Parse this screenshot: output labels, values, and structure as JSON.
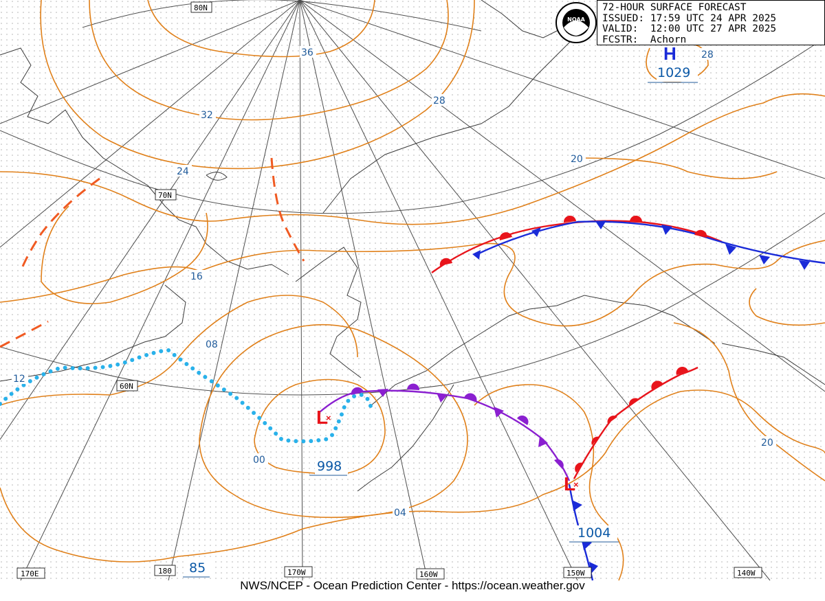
{
  "header": {
    "title": "72-HOUR SURFACE FORECAST",
    "issued": "ISSUED: 17:59 UTC 24 APR 2025",
    "valid": "VALID:  12:00 UTC 27 APR 2025",
    "forecaster": "FCSTR:  Achorn"
  },
  "logo": {
    "text": "NOAA"
  },
  "footer": {
    "credit": "NWS/NCEP - Ocean Prediction Center - https://ocean.weather.gov"
  },
  "latitude_labels": [
    "80N",
    "70N",
    "60N"
  ],
  "longitude_labels": [
    "170E",
    "180",
    "170W",
    "160W",
    "150W",
    "140W"
  ],
  "isobar_labels": [
    "36",
    "32",
    "28",
    "24",
    "28",
    "20",
    "16",
    "08",
    "12",
    "00",
    "04",
    "20"
  ],
  "pressure_centers": [
    {
      "type": "H",
      "value": "1029"
    },
    {
      "type": "L",
      "value": "998"
    },
    {
      "type": "L",
      "value": "1004"
    }
  ],
  "other_labels": {
    "corner_value": "85"
  },
  "colors": {
    "isobar": "#e0801a",
    "isobar_label": "#1f5a9a",
    "warm_front": "#e8141b",
    "cold_front": "#1a2bd8",
    "occluded_front": "#8a1fd0",
    "trough": "#f05a22",
    "dissipating_front": "#29b1ea",
    "grid": "#000000"
  }
}
